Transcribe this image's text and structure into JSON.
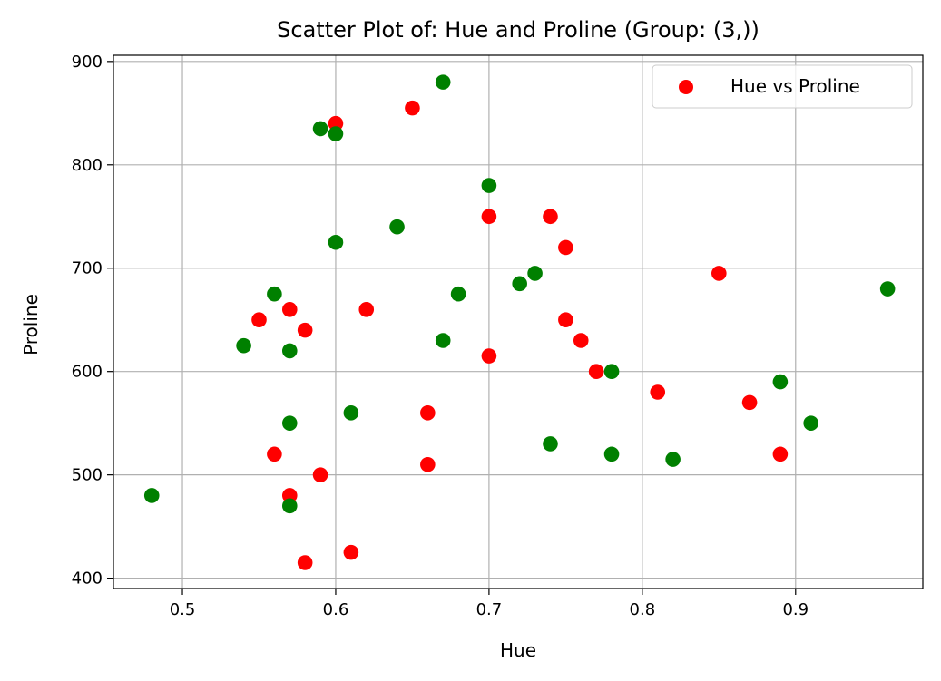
{
  "chart_data": {
    "type": "scatter",
    "title": "Scatter Plot of: Hue and Proline (Group: (3,))",
    "xlabel": "Hue",
    "ylabel": "Proline",
    "xlim": [
      0.455,
      0.983
    ],
    "ylim": [
      390,
      906
    ],
    "xticks": [
      "0.5",
      "0.6",
      "0.7",
      "0.8",
      "0.9"
    ],
    "yticks": [
      "400",
      "500",
      "600",
      "700",
      "800",
      "900"
    ],
    "grid": true,
    "legend_position": "top-right",
    "legend": [
      "Hue vs Proline"
    ],
    "colors": {
      "red": "#ff0000",
      "green": "#008000"
    },
    "series": [
      {
        "name": "Hue vs Proline",
        "color": "#ff0000",
        "points": [
          [
            0.6,
            840
          ],
          [
            0.65,
            855
          ],
          [
            0.7,
            750
          ],
          [
            0.74,
            750
          ],
          [
            0.75,
            720
          ],
          [
            0.85,
            695
          ],
          [
            0.55,
            650
          ],
          [
            0.57,
            660
          ],
          [
            0.58,
            640
          ],
          [
            0.62,
            660
          ],
          [
            0.75,
            650
          ],
          [
            0.76,
            630
          ],
          [
            0.7,
            615
          ],
          [
            0.77,
            600
          ],
          [
            0.81,
            580
          ],
          [
            0.87,
            570
          ],
          [
            0.66,
            560
          ],
          [
            0.56,
            520
          ],
          [
            0.59,
            500
          ],
          [
            0.66,
            510
          ],
          [
            0.89,
            520
          ],
          [
            0.57,
            480
          ],
          [
            0.61,
            425
          ],
          [
            0.58,
            415
          ]
        ]
      },
      {
        "color": "#008000",
        "points": [
          [
            0.67,
            880
          ],
          [
            0.59,
            835
          ],
          [
            0.6,
            830
          ],
          [
            0.7,
            780
          ],
          [
            0.64,
            740
          ],
          [
            0.6,
            725
          ],
          [
            0.73,
            695
          ],
          [
            0.72,
            685
          ],
          [
            0.68,
            675
          ],
          [
            0.56,
            675
          ],
          [
            0.96,
            680
          ],
          [
            0.54,
            625
          ],
          [
            0.57,
            620
          ],
          [
            0.67,
            630
          ],
          [
            0.78,
            600
          ],
          [
            0.89,
            590
          ],
          [
            0.61,
            560
          ],
          [
            0.57,
            550
          ],
          [
            0.91,
            550
          ],
          [
            0.74,
            530
          ],
          [
            0.78,
            520
          ],
          [
            0.82,
            515
          ],
          [
            0.48,
            480
          ],
          [
            0.57,
            470
          ]
        ]
      }
    ]
  }
}
